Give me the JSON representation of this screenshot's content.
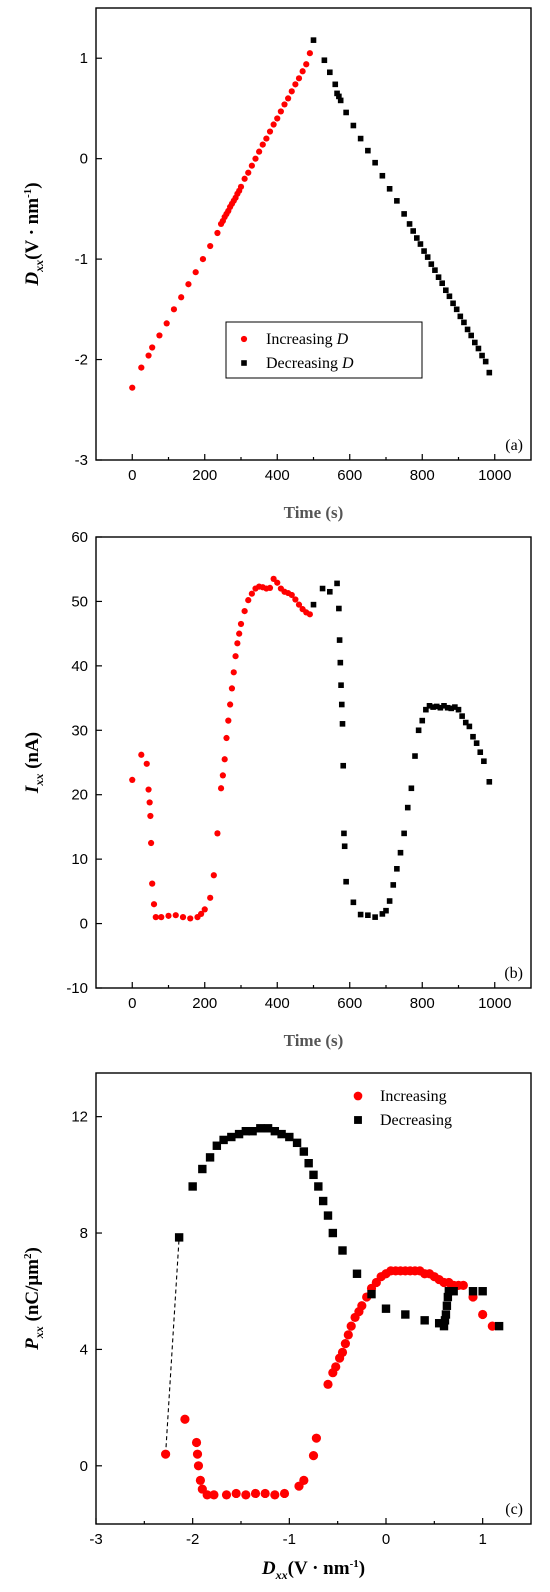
{
  "chart_data": [
    {
      "type": "scatter",
      "panel_label": "(a)",
      "xlabel": "Time (s)",
      "ylabel": {
        "main": "D",
        "sub": "xx",
        "rest": "(V · nm",
        "sup": "-1",
        "close": ")"
      },
      "xlim": [
        -100,
        1100
      ],
      "ylim": [
        -3,
        1.5
      ],
      "xticks": [
        0,
        200,
        400,
        600,
        800,
        1000
      ],
      "yticks": [
        -3,
        -2,
        -1,
        0,
        1
      ],
      "legend": {
        "position": "center-bottom",
        "items": [
          {
            "label": "Increasing ",
            "italic": "D",
            "marker": "circle",
            "color": "#ff0000"
          },
          {
            "label": "Decreasing ",
            "italic": "D",
            "marker": "square",
            "color": "#000000"
          }
        ]
      },
      "series": [
        {
          "name": "Increasing D",
          "marker": "circle",
          "color": "#ff0000",
          "x": [
            0,
            25,
            45,
            55,
            75,
            95,
            115,
            135,
            155,
            175,
            195,
            215,
            235,
            245,
            250,
            255,
            260,
            265,
            270,
            275,
            280,
            285,
            290,
            295,
            300,
            310,
            320,
            330,
            340,
            350,
            360,
            370,
            380,
            390,
            400,
            410,
            420,
            430,
            440,
            450,
            460,
            470,
            480,
            490
          ],
          "y": [
            -2.28,
            -2.08,
            -1.96,
            -1.88,
            -1.76,
            -1.64,
            -1.5,
            -1.38,
            -1.25,
            -1.13,
            -1.0,
            -0.87,
            -0.74,
            -0.65,
            -0.62,
            -0.58,
            -0.55,
            -0.52,
            -0.48,
            -0.45,
            -0.42,
            -0.39,
            -0.35,
            -0.32,
            -0.28,
            -0.2,
            -0.14,
            -0.07,
            0.0,
            0.07,
            0.14,
            0.2,
            0.27,
            0.34,
            0.4,
            0.47,
            0.54,
            0.6,
            0.67,
            0.74,
            0.8,
            0.87,
            0.94,
            1.05
          ]
        },
        {
          "name": "Decreasing D",
          "marker": "square",
          "color": "#000000",
          "x": [
            500,
            530,
            545,
            560,
            565,
            570,
            575,
            590,
            610,
            630,
            650,
            670,
            690,
            710,
            730,
            750,
            765,
            775,
            785,
            795,
            805,
            815,
            825,
            835,
            845,
            855,
            865,
            875,
            885,
            895,
            905,
            915,
            925,
            935,
            945,
            955,
            965,
            975,
            985
          ],
          "y": [
            1.18,
            0.98,
            0.86,
            0.74,
            0.65,
            0.62,
            0.58,
            0.46,
            0.33,
            0.2,
            0.08,
            -0.04,
            -0.17,
            -0.3,
            -0.42,
            -0.55,
            -0.65,
            -0.72,
            -0.79,
            -0.85,
            -0.92,
            -0.98,
            -1.05,
            -1.11,
            -1.18,
            -1.24,
            -1.31,
            -1.37,
            -1.44,
            -1.5,
            -1.57,
            -1.63,
            -1.7,
            -1.76,
            -1.83,
            -1.89,
            -1.96,
            -2.02,
            -2.13
          ]
        }
      ]
    },
    {
      "type": "scatter",
      "panel_label": "(b)",
      "xlabel": "Time (s)",
      "ylabel": {
        "main": "I",
        "sub": "xx",
        "rest": " (nA)",
        "sup": "",
        "close": ""
      },
      "xlim": [
        -100,
        1100
      ],
      "ylim": [
        -10,
        60
      ],
      "xticks": [
        0,
        200,
        400,
        600,
        800,
        1000
      ],
      "yticks": [
        -10,
        0,
        10,
        20,
        30,
        40,
        50,
        60
      ],
      "series": [
        {
          "name": "Increasing D",
          "marker": "circle",
          "color": "#ff0000",
          "x": [
            0,
            25,
            40,
            45,
            48,
            50,
            52,
            55,
            60,
            65,
            80,
            100,
            120,
            140,
            160,
            180,
            190,
            200,
            215,
            225,
            235,
            245,
            250,
            255,
            260,
            265,
            270,
            275,
            280,
            285,
            290,
            295,
            300,
            310,
            320,
            330,
            340,
            350,
            360,
            370,
            380,
            390,
            400,
            410,
            420,
            430,
            440,
            450,
            460,
            470,
            480,
            490
          ],
          "y": [
            22.3,
            26.2,
            24.8,
            20.8,
            18.8,
            16.7,
            12.5,
            6.2,
            3.0,
            1.0,
            1.0,
            1.2,
            1.3,
            1.0,
            0.8,
            1.0,
            1.5,
            2.2,
            4.0,
            7.5,
            14.0,
            21.0,
            23.0,
            25.5,
            28.8,
            31.5,
            34.0,
            36.5,
            39.0,
            41.5,
            43.5,
            45.0,
            46.5,
            48.5,
            50.2,
            51.2,
            52.0,
            52.3,
            52.2,
            52.0,
            52.1,
            53.5,
            52.9,
            52.0,
            51.5,
            51.3,
            51.0,
            50.3,
            49.5,
            48.8,
            48.3,
            48.0
          ]
        },
        {
          "name": "Decreasing D",
          "marker": "square",
          "color": "#000000",
          "x": [
            500,
            525,
            545,
            565,
            570,
            572,
            574,
            576,
            578,
            580,
            582,
            584,
            586,
            590,
            610,
            630,
            650,
            670,
            690,
            700,
            710,
            720,
            730,
            740,
            750,
            760,
            770,
            780,
            790,
            800,
            810,
            820,
            830,
            840,
            850,
            860,
            870,
            880,
            890,
            900,
            910,
            920,
            930,
            940,
            950,
            960,
            970,
            985
          ],
          "y": [
            49.5,
            52.0,
            51.5,
            52.8,
            48.9,
            44.0,
            40.5,
            37.0,
            34.0,
            31.0,
            24.5,
            14.0,
            12.0,
            6.5,
            3.3,
            1.4,
            1.3,
            1.0,
            1.5,
            2.0,
            3.5,
            6.0,
            8.5,
            11.0,
            14.0,
            18.0,
            21.0,
            26.0,
            30.0,
            31.5,
            33.2,
            33.8,
            33.6,
            33.7,
            33.5,
            33.8,
            33.5,
            33.4,
            33.6,
            33.2,
            32.2,
            31.2,
            30.6,
            29.0,
            28.0,
            26.6,
            25.2,
            22.0
          ]
        }
      ]
    },
    {
      "type": "scatter",
      "panel_label": "(c)",
      "xlabel": {
        "main": "D",
        "sub": "xx",
        "rest": "(V · nm",
        "sup": "-1",
        "close": ")"
      },
      "ylabel": {
        "main": "P",
        "sub": "xx",
        "rest": " (nC/μm",
        "sup": "2",
        "close": ")"
      },
      "xlim": [
        -3,
        1.5
      ],
      "ylim": [
        -2,
        13.5
      ],
      "xticks": [
        -3,
        -2,
        -1,
        0,
        1
      ],
      "yticks": [
        0,
        4,
        8,
        12
      ],
      "legend": {
        "position": "top-right",
        "items": [
          {
            "label": "Increasing",
            "italic": "",
            "marker": "circle",
            "color": "#ff0000"
          },
          {
            "label": "Decreasing",
            "italic": "",
            "marker": "square",
            "color": "#000000"
          }
        ]
      },
      "dashed_connector": {
        "x": [
          -2.28,
          -2.14
        ],
        "y": [
          0.4,
          7.85
        ]
      },
      "series": [
        {
          "name": "Increasing",
          "marker": "circle",
          "color": "#ff0000",
          "x": [
            -2.28,
            -2.08,
            -1.96,
            -1.95,
            -1.94,
            -1.92,
            -1.9,
            -1.85,
            -1.78,
            -1.65,
            -1.55,
            -1.45,
            -1.35,
            -1.25,
            -1.15,
            -1.05,
            -0.9,
            -0.85,
            -0.75,
            -0.72,
            -0.6,
            -0.55,
            -0.52,
            -0.48,
            -0.45,
            -0.42,
            -0.39,
            -0.36,
            -0.32,
            -0.28,
            -0.25,
            -0.2,
            -0.15,
            -0.1,
            -0.05,
            0.0,
            0.05,
            0.1,
            0.15,
            0.2,
            0.25,
            0.3,
            0.35,
            0.4,
            0.45,
            0.5,
            0.55,
            0.6,
            0.65,
            0.7,
            0.75,
            0.8,
            0.9,
            1.0,
            1.1
          ],
          "y": [
            0.4,
            1.6,
            0.8,
            0.4,
            0.0,
            -0.5,
            -0.8,
            -1.0,
            -1.0,
            -1.0,
            -0.95,
            -1.0,
            -0.95,
            -0.95,
            -1.0,
            -0.95,
            -0.7,
            -0.5,
            0.35,
            0.95,
            2.8,
            3.2,
            3.4,
            3.7,
            3.9,
            4.2,
            4.5,
            4.8,
            5.1,
            5.3,
            5.5,
            5.8,
            6.1,
            6.3,
            6.5,
            6.6,
            6.7,
            6.7,
            6.7,
            6.7,
            6.7,
            6.7,
            6.7,
            6.6,
            6.6,
            6.5,
            6.4,
            6.3,
            6.3,
            6.2,
            6.2,
            6.2,
            5.8,
            5.2,
            4.8
          ]
        }
      ]
    }
  ],
  "decreasing_p": {
    "x": [
      -2.14,
      -2.0,
      -1.9,
      -1.82,
      -1.75,
      -1.68,
      -1.6,
      -1.52,
      -1.45,
      -1.38,
      -1.3,
      -1.22,
      -1.15,
      -1.08,
      -1.0,
      -0.92,
      -0.85,
      -0.8,
      -0.75,
      -0.7,
      -0.65,
      -0.6,
      -0.55,
      -0.45,
      -0.3,
      -0.15,
      0.0,
      0.2,
      0.4,
      0.55,
      0.6,
      0.61,
      0.62,
      0.63,
      0.64,
      0.65,
      0.7,
      0.9,
      1.0,
      1.17
    ],
    "y": [
      7.85,
      9.6,
      10.2,
      10.6,
      11.0,
      11.2,
      11.3,
      11.4,
      11.5,
      11.5,
      11.6,
      11.6,
      11.5,
      11.4,
      11.3,
      11.1,
      10.8,
      10.4,
      10.0,
      9.6,
      9.1,
      8.6,
      8.0,
      7.4,
      6.6,
      5.9,
      5.4,
      5.2,
      5.0,
      4.9,
      4.8,
      5.0,
      5.2,
      5.5,
      5.8,
      6.0,
      6.0,
      6.0,
      6.0,
      4.8
    ]
  }
}
